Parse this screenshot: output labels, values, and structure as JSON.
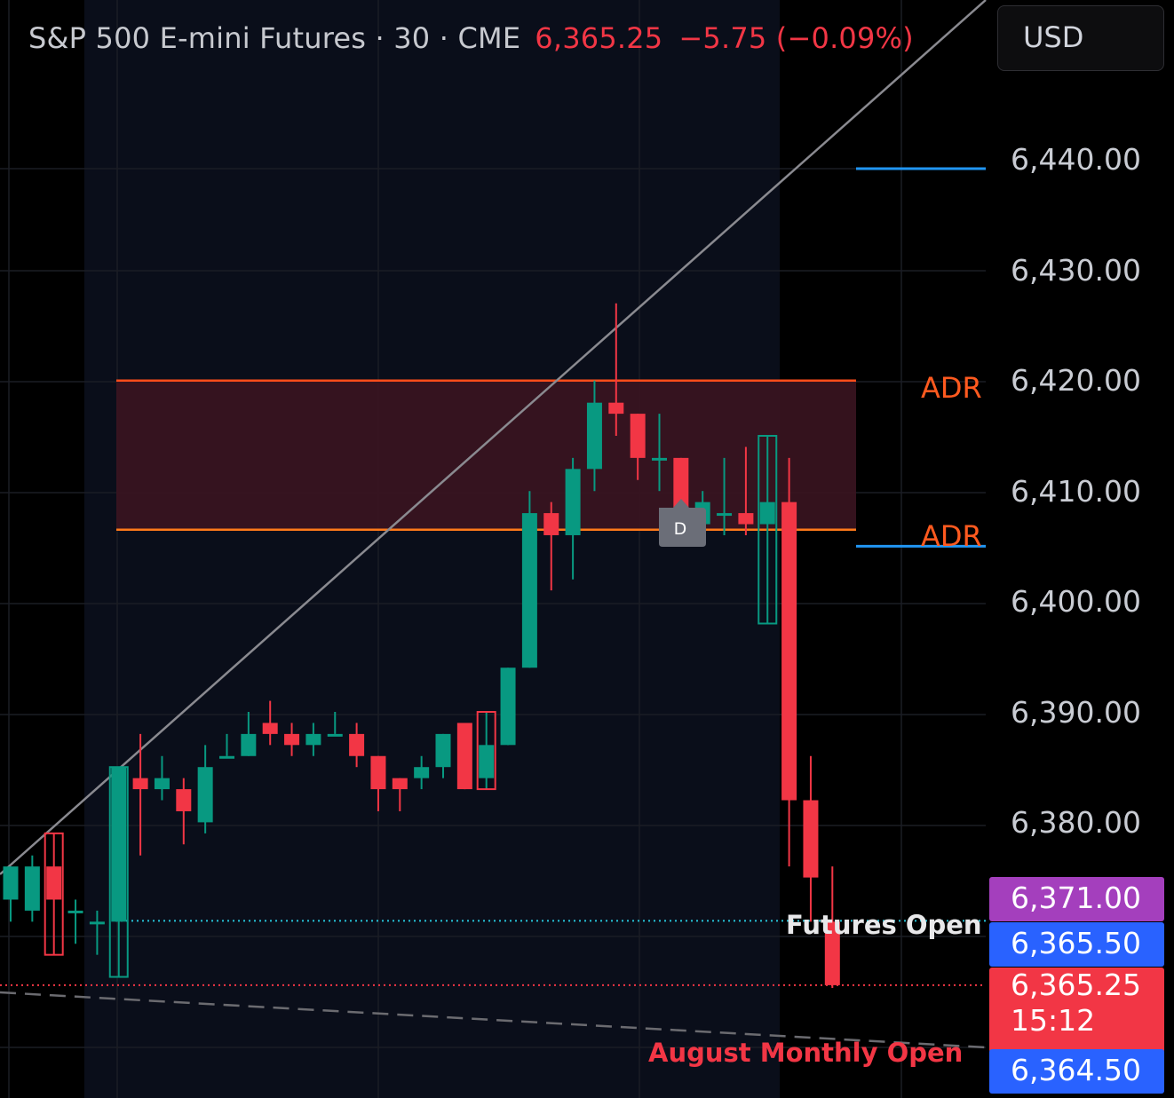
{
  "header": {
    "symbol": "S&P 500 E-mini Futures · 30 · CME",
    "price": "6,365.25",
    "change": "−5.75 (−0.09%)"
  },
  "currency_button": "USD",
  "price_axis": {
    "labels": [
      "6,440.00",
      "6,430.00",
      "6,420.00",
      "6,410.00",
      "6,400.00",
      "6,390.00",
      "6,380.00"
    ]
  },
  "price_tags": {
    "purple": "6,371.00",
    "blue_upper": "6,365.50",
    "last": "6,365.25",
    "countdown": "15:12",
    "blue_lower": "6,364.50"
  },
  "annotations": {
    "adr_upper": "ADR",
    "adr_lower": "ADR",
    "futures_open": "Futures Open",
    "monthly_open": "August Monthly Open",
    "dividend_marker": "D"
  },
  "colors": {
    "up": "#089981",
    "down": "#f23645",
    "adr_line": "#ff5a1f",
    "zone_fill": "#3a1420",
    "session_bg": "#0a0e1a",
    "trendline": "#8a8a90",
    "futures_open": "#26c6da",
    "monthly_open": "#f23645",
    "blue_level": "#2196f3"
  },
  "chart_data": {
    "type": "candlestick",
    "title": "S&P 500 E-mini Futures · 30 · CME",
    "interval": "30",
    "ylim": [
      6361,
      6450
    ],
    "grid": true,
    "candles": [
      {
        "o": 6373,
        "h": 6376,
        "l": 6371,
        "c": 6376
      },
      {
        "o": 6372,
        "h": 6377,
        "l": 6371,
        "c": 6376
      },
      {
        "o": 6376,
        "h": 6379,
        "l": 6368,
        "c": 6373
      },
      {
        "o": 6372,
        "h": 6373,
        "l": 6369,
        "c": 6372
      },
      {
        "o": 6371,
        "h": 6372,
        "l": 6368,
        "c": 6371
      },
      {
        "o": 6371,
        "h": 6385,
        "l": 6366,
        "c": 6385
      },
      {
        "o": 6384,
        "h": 6388,
        "l": 6377,
        "c": 6383
      },
      {
        "o": 6383,
        "h": 6386,
        "l": 6382,
        "c": 6384
      },
      {
        "o": 6383,
        "h": 6384,
        "l": 6378,
        "c": 6381
      },
      {
        "o": 6380,
        "h": 6387,
        "l": 6379,
        "c": 6385
      },
      {
        "o": 6386,
        "h": 6388,
        "l": 6386,
        "c": 6386
      },
      {
        "o": 6386,
        "h": 6390,
        "l": 6386,
        "c": 6388
      },
      {
        "o": 6389,
        "h": 6391,
        "l": 6387,
        "c": 6388
      },
      {
        "o": 6388,
        "h": 6389,
        "l": 6386,
        "c": 6387
      },
      {
        "o": 6387,
        "h": 6389,
        "l": 6386,
        "c": 6388
      },
      {
        "o": 6388,
        "h": 6390,
        "l": 6388,
        "c": 6388
      },
      {
        "o": 6388,
        "h": 6389,
        "l": 6385,
        "c": 6386
      },
      {
        "o": 6386,
        "h": 6386,
        "l": 6381,
        "c": 6383
      },
      {
        "o": 6384,
        "h": 6384,
        "l": 6381,
        "c": 6383
      },
      {
        "o": 6384,
        "h": 6386,
        "l": 6383,
        "c": 6385
      },
      {
        "o": 6385,
        "h": 6388,
        "l": 6384,
        "c": 6388
      },
      {
        "o": 6389,
        "h": 6389,
        "l": 6383,
        "c": 6383
      },
      {
        "o": 6384,
        "h": 6390,
        "l": 6383,
        "c": 6387
      },
      {
        "o": 6387,
        "h": 6394,
        "l": 6387,
        "c": 6394
      },
      {
        "o": 6394,
        "h": 6410,
        "l": 6394,
        "c": 6408
      },
      {
        "o": 6408,
        "h": 6409,
        "l": 6401,
        "c": 6406
      },
      {
        "o": 6406,
        "h": 6413,
        "l": 6402,
        "c": 6412
      },
      {
        "o": 6412,
        "h": 6420,
        "l": 6410,
        "c": 6418
      },
      {
        "o": 6418,
        "h": 6427,
        "l": 6415,
        "c": 6417
      },
      {
        "o": 6417,
        "h": 6417,
        "l": 6411,
        "c": 6413
      },
      {
        "o": 6413,
        "h": 6417,
        "l": 6410,
        "c": 6413
      },
      {
        "o": 6413,
        "h": 6413,
        "l": 6407,
        "c": 6407
      },
      {
        "o": 6407,
        "h": 6410,
        "l": 6406,
        "c": 6409
      },
      {
        "o": 6408,
        "h": 6413,
        "l": 6406,
        "c": 6408
      },
      {
        "o": 6408,
        "h": 6414,
        "l": 6406,
        "c": 6407
      },
      {
        "o": 6407,
        "h": 6415,
        "l": 6398,
        "c": 6409
      },
      {
        "o": 6409,
        "h": 6413,
        "l": 6376,
        "c": 6382
      },
      {
        "o": 6382,
        "h": 6386,
        "l": 6371,
        "c": 6375
      },
      {
        "o": 6371,
        "h": 6376,
        "l": 6365,
        "c": 6365.25
      }
    ],
    "levels": {
      "adr_upper": 6420,
      "adr_lower": 6406.5,
      "blue_upper": 6439.2,
      "blue_lower": 6405,
      "futures_open": 6371,
      "monthly_open": 6365.25
    }
  }
}
